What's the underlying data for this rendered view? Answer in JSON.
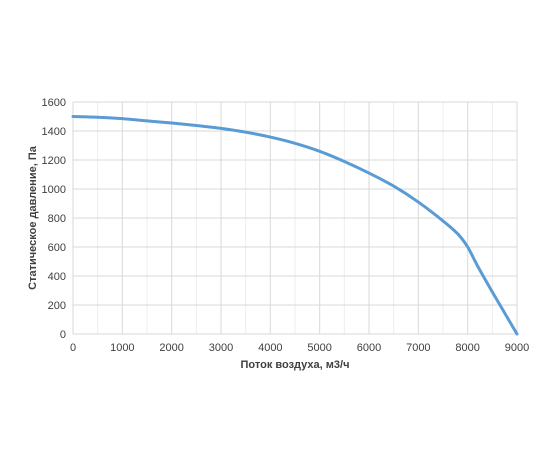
{
  "chart_data": {
    "type": "line",
    "title": "",
    "xlabel": "Поток воздуха, м3/ч",
    "ylabel": "Статическое давление, Па",
    "xlim": [
      0,
      9000
    ],
    "ylim": [
      0,
      1600
    ],
    "x_ticks": [
      0,
      1000,
      2000,
      3000,
      4000,
      5000,
      6000,
      7000,
      8000,
      9000
    ],
    "y_ticks": [
      0,
      200,
      400,
      600,
      800,
      1000,
      1200,
      1400,
      1600
    ],
    "grid": true,
    "legend": "none",
    "colors": {
      "line": "#5B9BD5",
      "grid": "#D9D9D9",
      "minor_grid": "#EDEDED",
      "text": "#404040"
    },
    "series": [
      {
        "x": [
          0,
          500,
          1000,
          1500,
          2000,
          2500,
          3000,
          3500,
          4000,
          4500,
          5000,
          5500,
          6000,
          6500,
          7000,
          7500,
          7800,
          8000,
          8200,
          8500,
          9000
        ],
        "y": [
          1500,
          1495,
          1485,
          1470,
          1455,
          1438,
          1418,
          1392,
          1358,
          1315,
          1260,
          1190,
          1110,
          1020,
          910,
          780,
          690,
          600,
          470,
          290,
          0
        ]
      }
    ]
  }
}
